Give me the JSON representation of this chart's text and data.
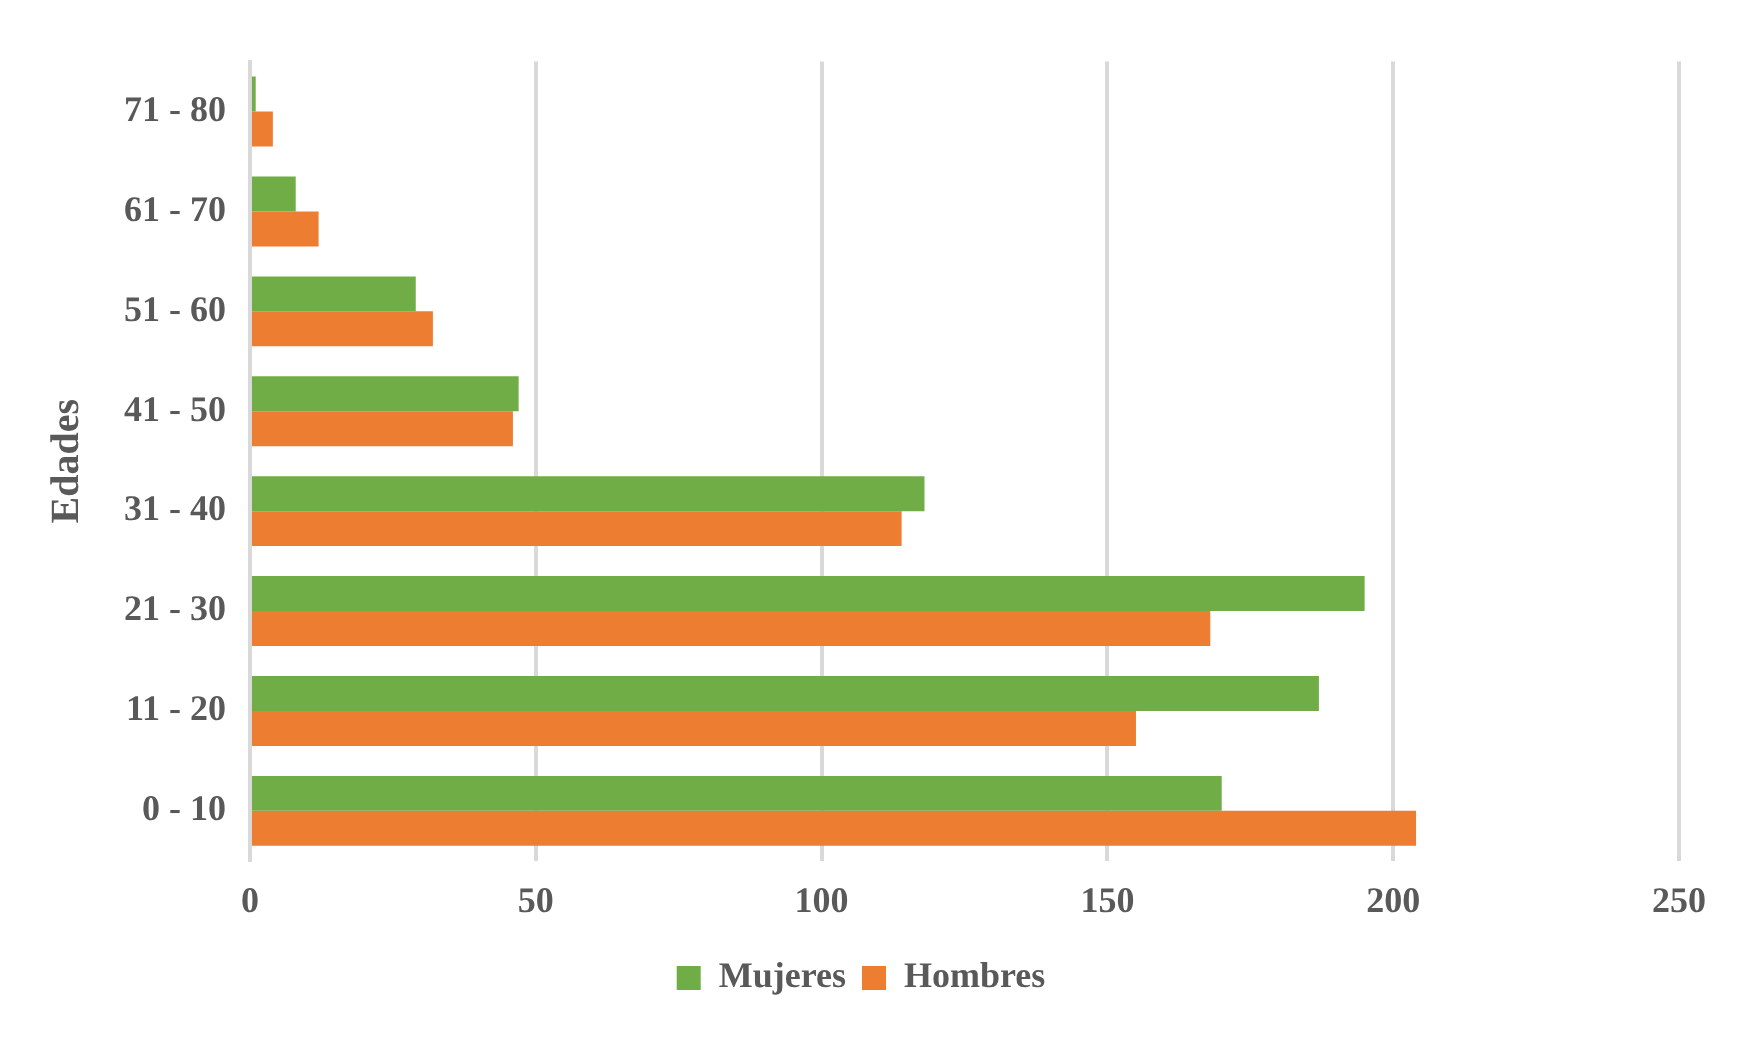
{
  "chart_data": {
    "type": "bar",
    "orientation": "horizontal",
    "ylabel": "Edades",
    "categories": [
      "71 - 80",
      "61 - 70",
      "51 - 60",
      "41 - 50",
      "31 - 40",
      "21 - 30",
      "11 - 20",
      "0 - 10"
    ],
    "series": [
      {
        "name": "Mujeres",
        "color": "#70ad47",
        "values": [
          1,
          8,
          29,
          47,
          118,
          195,
          187,
          170
        ]
      },
      {
        "name": "Hombres",
        "color": "#ed7d31",
        "values": [
          4,
          12,
          32,
          46,
          114,
          168,
          155,
          204
        ]
      }
    ],
    "xlim": [
      0,
      250
    ],
    "xticks": [
      0,
      50,
      100,
      150,
      200,
      250
    ],
    "grid": "x",
    "legend": "bottom"
  }
}
